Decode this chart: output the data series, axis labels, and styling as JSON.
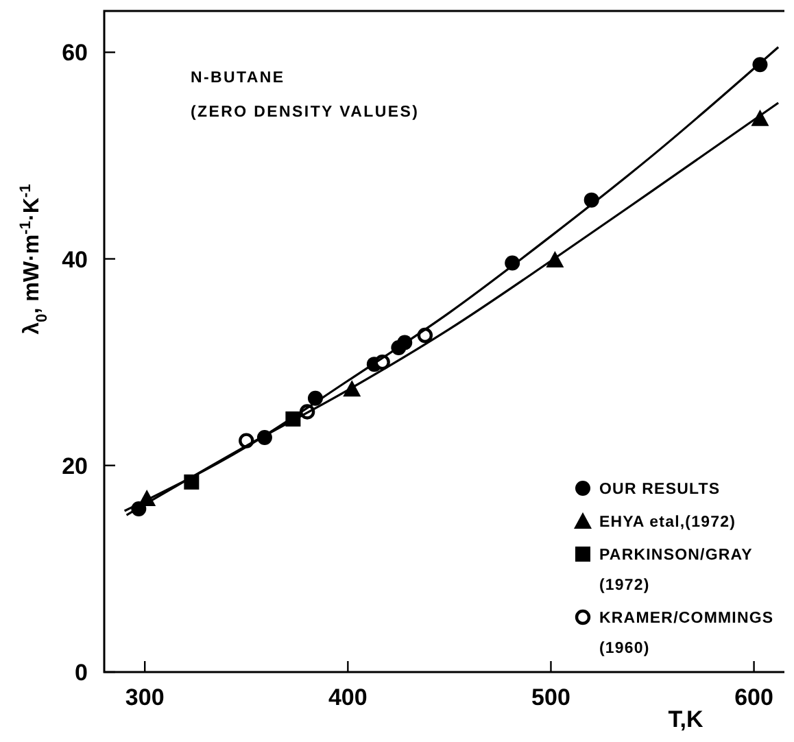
{
  "chart_data": {
    "type": "scatter",
    "xlabel": "T,K",
    "ylabel": "λ$_{0}$, mW·m$^{-1}$·K$^{-1}$",
    "annotations": [
      "N-BUTANE",
      "(ZERO DENSITY VALUES)"
    ],
    "xlim": [
      280,
      615
    ],
    "ylim": [
      0,
      64
    ],
    "xticks": [
      300,
      400,
      500,
      600
    ],
    "yticks": [
      0,
      20,
      40,
      60
    ],
    "legend": "bottom right",
    "grid": false,
    "series": [
      {
        "name": "OUR RESULTS",
        "color": "#000000",
        "marker": "circle",
        "x": [
          297,
          359,
          384,
          413,
          425,
          428,
          481,
          520,
          603
        ],
        "values": [
          15.8,
          22.7,
          26.5,
          29.8,
          31.4,
          31.9,
          39.6,
          45.7,
          58.8
        ]
      },
      {
        "name": "EHYA etal,(1972)",
        "color": "#000000",
        "marker": "triangle",
        "x": [
          301,
          402,
          502,
          603
        ],
        "values": [
          16.8,
          27.4,
          39.9,
          53.6
        ]
      },
      {
        "name": "PARKINSON/GRAY (1972)",
        "color": "#000000",
        "marker": "square",
        "x": [
          323,
          373
        ],
        "values": [
          18.4,
          24.5
        ]
      },
      {
        "name": "KRAMER/COMMINGS (1960)",
        "color": "#000000",
        "marker": "open-circle",
        "x": [
          350,
          380,
          417,
          438
        ],
        "values": [
          22.4,
          25.2,
          30.0,
          32.6
        ]
      },
      {
        "type": "line",
        "color": "#000000",
        "line_style": "solid",
        "x": [
          290,
          350,
          400,
          450,
          500,
          550,
          612
        ],
        "values": [
          15.6,
          21.8,
          28.2,
          34.8,
          42.2,
          50.0,
          60.5
        ]
      },
      {
        "type": "line",
        "color": "#000000",
        "line_style": "solid",
        "x": [
          291,
          350,
          400,
          450,
          500,
          550,
          612
        ],
        "values": [
          15.2,
          21.9,
          27.3,
          33.2,
          39.8,
          46.6,
          55.1
        ]
      }
    ]
  }
}
